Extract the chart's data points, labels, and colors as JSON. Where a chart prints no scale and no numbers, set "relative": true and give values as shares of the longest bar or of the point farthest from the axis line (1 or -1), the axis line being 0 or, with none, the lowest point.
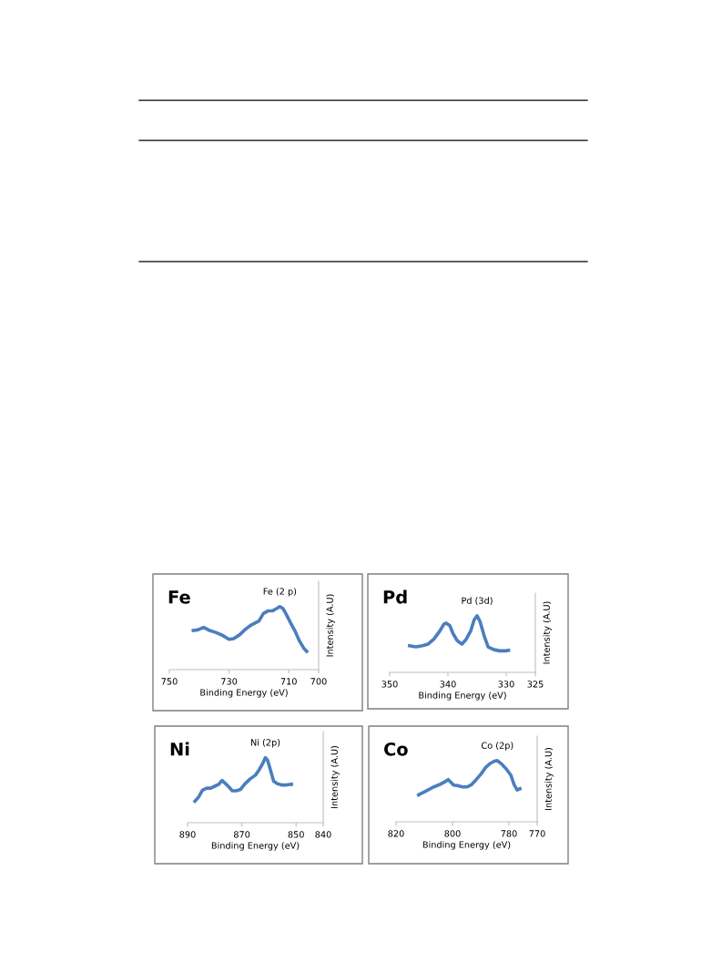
{
  "chart_data": [
    {
      "type": "line",
      "title": "Fe",
      "xlabel": "Binding Energy (eV)",
      "ylabel": "Intensity (A.U)",
      "relative": true,
      "xlim": [
        750,
        700
      ],
      "xticks": [
        750,
        730,
        710,
        700
      ],
      "annotations": [
        {
          "text": "Fe (2 p)",
          "x": 713,
          "y": 1
        }
      ],
      "series": [
        {
          "color": "#4a7ebf",
          "x": [
            742,
            740.5,
            738.5,
            736.5,
            734.5,
            732.5,
            730,
            728.5,
            726.5,
            724.5,
            722.5,
            720,
            718.5,
            717,
            715.5,
            714,
            713,
            712,
            711,
            709.5,
            708,
            706.5,
            705,
            704
          ],
          "values": [
            0.62,
            0.63,
            0.67,
            0.62,
            0.59,
            0.55,
            0.48,
            0.49,
            0.55,
            0.64,
            0.71,
            0.77,
            0.89,
            0.93,
            0.93,
            0.97,
            1,
            0.97,
            0.89,
            0.75,
            0.62,
            0.46,
            0.34,
            0.29
          ]
        }
      ]
    },
    {
      "type": "line",
      "title": "Pd",
      "xlabel": "Binding Energy (eV)",
      "ylabel": "Intensity (A.U)",
      "relative": true,
      "xlim": [
        350,
        325
      ],
      "xticks": [
        350,
        340,
        330,
        325
      ],
      "annotations": [
        {
          "text": "Pd (3d)",
          "x": 335,
          "y": 1
        }
      ],
      "series": [
        {
          "color": "#4a7ebf",
          "x": [
            346.6,
            345.5,
            344.4,
            343.4,
            342.4,
            341.4,
            340.7,
            340.3,
            339.7,
            339.1,
            338.4,
            337.6,
            336.9,
            336.1,
            335.5,
            335.0,
            334.5,
            333.8,
            333.1,
            332.1,
            331.1,
            330.1,
            329.6
          ],
          "values": [
            0.47,
            0.45,
            0.47,
            0.5,
            0.59,
            0.73,
            0.85,
            0.87,
            0.83,
            0.68,
            0.56,
            0.5,
            0.58,
            0.73,
            0.93,
            1,
            0.9,
            0.65,
            0.45,
            0.4,
            0.38,
            0.38,
            0.39
          ]
        }
      ]
    },
    {
      "type": "line",
      "title": "Ni",
      "xlabel": "Binding Energy (eV)",
      "ylabel": "Intensity (A.U)",
      "relative": true,
      "xlim": [
        890,
        840
      ],
      "xticks": [
        890,
        870,
        850,
        840
      ],
      "annotations": [
        {
          "text": "Ni (2p)",
          "x": 861.3,
          "y": 1
        }
      ],
      "series": [
        {
          "color": "#4a7ebf",
          "x": [
            887.3,
            886,
            884.5,
            883,
            881.5,
            880,
            878.5,
            877.3,
            876,
            875,
            873.5,
            872,
            870.5,
            869,
            867,
            865,
            863.5,
            862.3,
            861.3,
            860.5,
            859.5,
            858.3,
            857,
            855.5,
            853.5,
            851.7
          ],
          "values": [
            0.33,
            0.39,
            0.5,
            0.53,
            0.53,
            0.56,
            0.59,
            0.65,
            0.6,
            0.56,
            0.49,
            0.49,
            0.51,
            0.59,
            0.67,
            0.73,
            0.82,
            0.91,
            1,
            0.96,
            0.82,
            0.64,
            0.6,
            0.58,
            0.58,
            0.59
          ]
        }
      ]
    },
    {
      "type": "line",
      "title": "Co",
      "xlabel": "Binding Energy (eV)",
      "ylabel": "Intensity (A.U)",
      "relative": true,
      "xlim": [
        820,
        770
      ],
      "xticks": [
        820,
        800,
        780,
        770
      ],
      "annotations": [
        {
          "text": "Co (2p)",
          "x": 784.1,
          "y": 1
        }
      ],
      "series": [
        {
          "color": "#4a7ebf",
          "x": [
            812,
            810.4,
            808.7,
            806.6,
            804.5,
            802.9,
            801.5,
            799.6,
            798,
            796.4,
            794.8,
            793.2,
            791.6,
            789.9,
            788.4,
            786.8,
            785.2,
            784.1,
            782.5,
            780.9,
            779.3,
            778.2,
            777.1,
            776.1
          ],
          "values": [
            0.44,
            0.48,
            0.52,
            0.57,
            0.61,
            0.65,
            0.69,
            0.6,
            0.59,
            0.57,
            0.57,
            0.61,
            0.69,
            0.78,
            0.88,
            0.95,
            0.99,
            1,
            0.94,
            0.86,
            0.76,
            0.61,
            0.52,
            0.54
          ]
        }
      ]
    }
  ]
}
